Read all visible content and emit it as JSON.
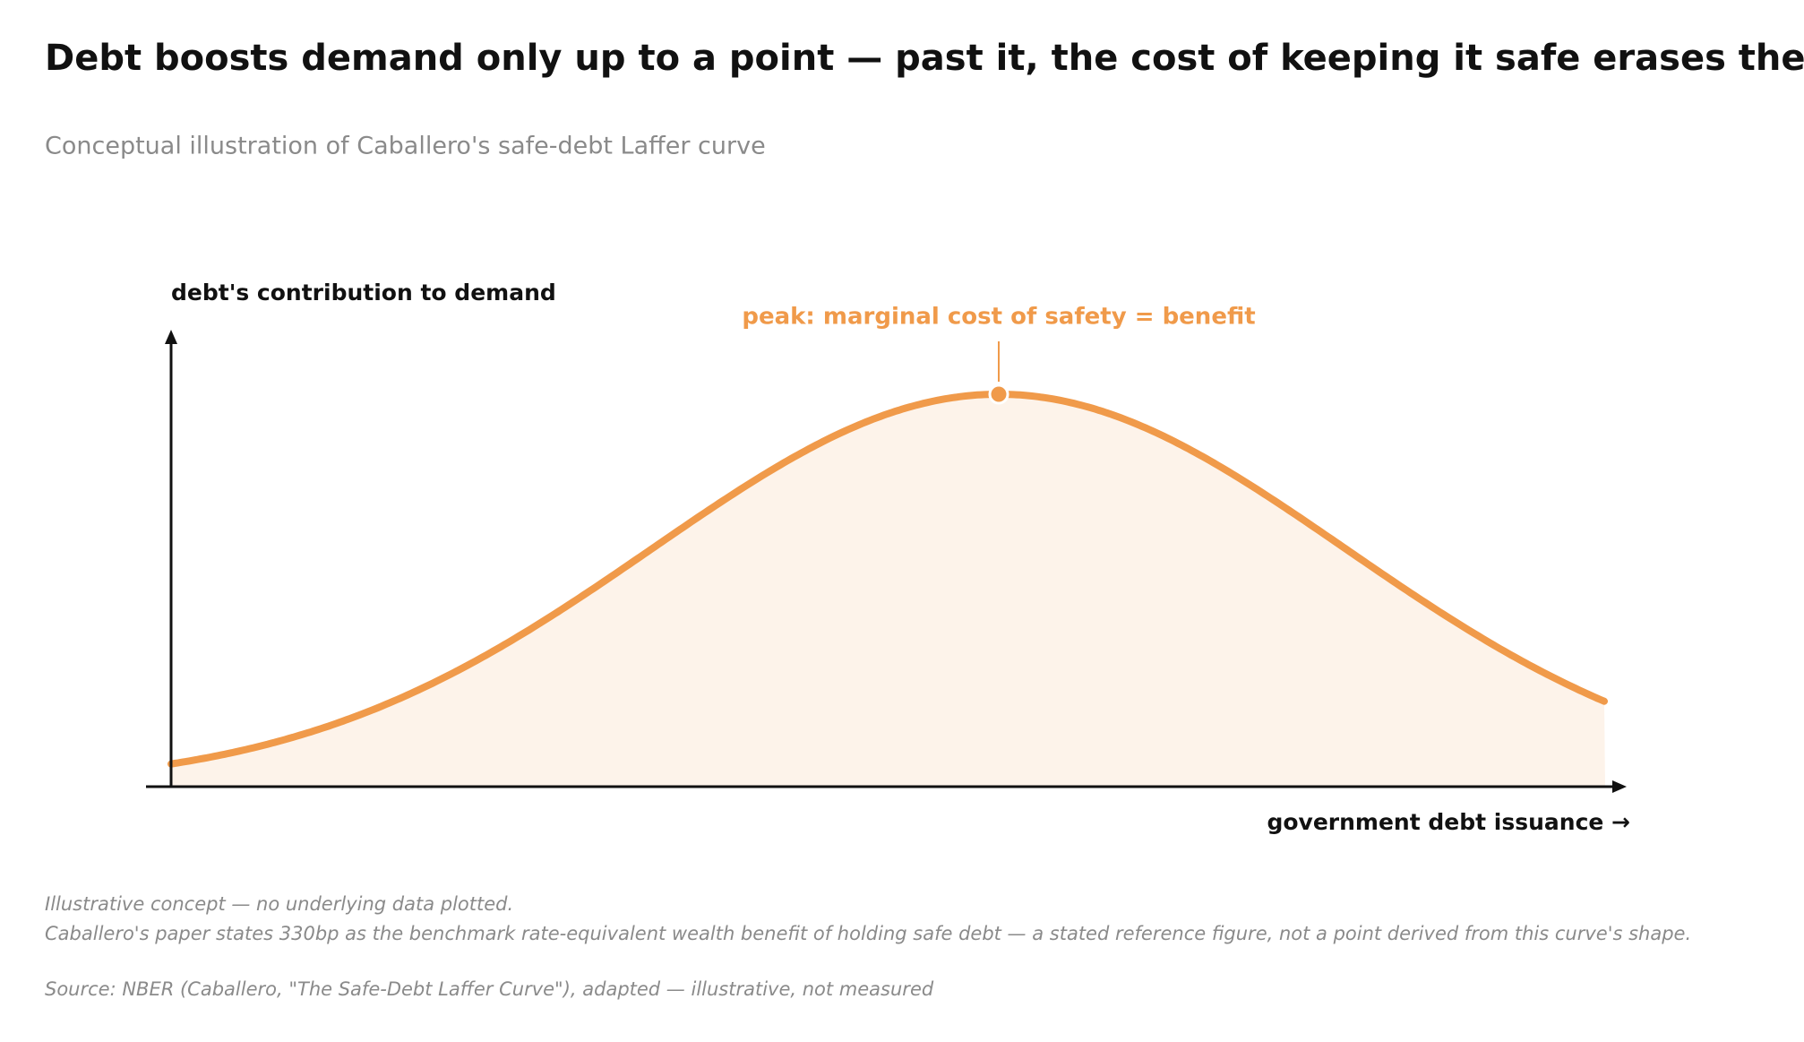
{
  "chart_data": {
    "type": "line",
    "title": "Debt boosts demand only up to a point — past it, the cost of keeping it safe erases the benefit.",
    "subtitle": "Conceptual illustration of Caballero's safe-debt Laffer curve",
    "y_label": "debt's contribution to demand",
    "x_label": "government debt issuance →",
    "annotation": "peak: marginal cost of safety = benefit",
    "color": "#f09a4a",
    "notes": [
      "Illustrative concept — no underlying data plotted.",
      "Caballero's paper states 330bp as the benchmark rate-equivalent wealth benefit of holding safe debt — a stated reference figure, not a point derived from this curve's shape."
    ],
    "source": "Source: NBER (Caballero, \"The Safe-Debt Laffer Curve\"), adapted — illustrative, not measured"
  }
}
